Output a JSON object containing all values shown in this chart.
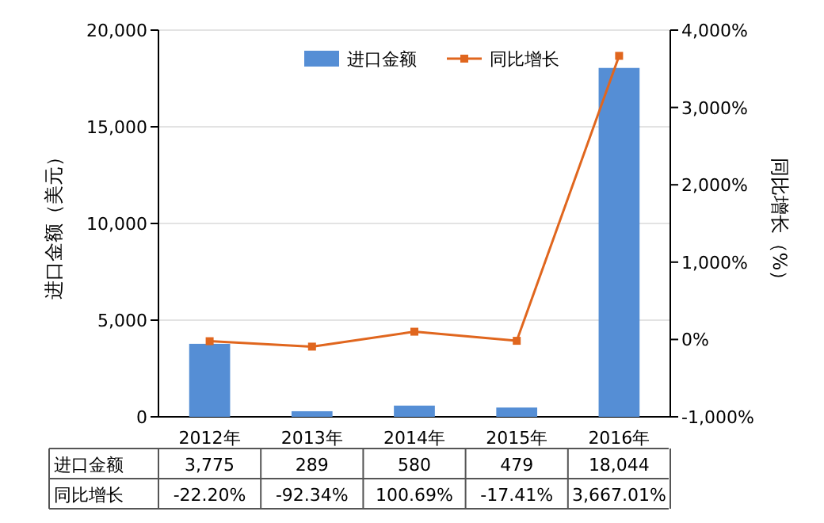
{
  "chart_data": {
    "type": "bar",
    "categories": [
      "2012年",
      "2013年",
      "2014年",
      "2015年",
      "2016年"
    ],
    "ylabel": "进口金额（美元）",
    "y2label": "同比增长（%）",
    "series": [
      {
        "name": "进口金额",
        "color": "#558ed5",
        "values": [
          3775,
          289,
          580,
          479,
          18044
        ],
        "value_labels": [
          "3,775",
          "289",
          "580",
          "479",
          "18,044"
        ]
      },
      {
        "name": "同比增长",
        "type": "line",
        "axis": "y2",
        "color": "#e0661e",
        "marker": "square",
        "values": [
          -22.2,
          -92.34,
          100.69,
          -17.41,
          3667.01
        ],
        "value_labels": [
          "-22.20%",
          "-92.34%",
          "100.69%",
          "-17.41%",
          "3,667.01%"
        ]
      }
    ],
    "ylim": [
      0,
      20000
    ],
    "yticks": [
      0,
      {
        "value": 5000,
        "label": "5,000"
      },
      {
        "value": 10000,
        "label": "10,000"
      },
      {
        "value": 15000,
        "label": "15,000"
      },
      {
        "value": 20000,
        "label": "20,000"
      }
    ],
    "y2lim": [
      -1000,
      4000
    ],
    "y2ticks": [
      {
        "value": -1000,
        "label": "-1,000%"
      },
      {
        "value": 0,
        "label": "0%"
      },
      {
        "value": 1000,
        "label": "1,000%"
      },
      {
        "value": 2000,
        "label": "2,000%"
      },
      {
        "value": 3000,
        "label": "3,000%"
      },
      {
        "value": 4000,
        "label": "4,000%"
      }
    ],
    "grid": "y",
    "legend": "top right"
  }
}
